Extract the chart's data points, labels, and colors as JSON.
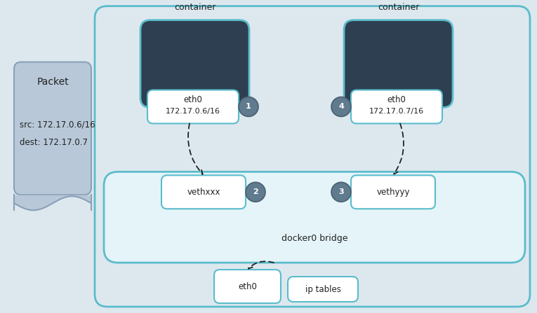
{
  "bg_color": "#dde8ee",
  "outer_bg": "#dde8ee",
  "outer_edge": "#5bbccc",
  "container_color": "#2d3f50",
  "container_edge": "#5bbccc",
  "eth_box_face": "#ffffff",
  "eth_box_edge": "#5bbccc",
  "bridge_face": "#e5f4f8",
  "bridge_edge": "#5bbccc",
  "packet_face": "#b8c8d8",
  "packet_edge": "#8aa0b8",
  "circle_face": "#607a8e",
  "circle_edge": "#4a6070",
  "circle_text": "#ffffff",
  "arrow_color": "#222222",
  "text_color": "#222222",
  "text_color_dark": "#2a3f55",
  "container_label": "container",
  "eth1_line1": "eth0",
  "eth1_line2": "172.17.0.6/16",
  "eth2_line1": "eth0",
  "eth2_line2": "172.17.0.7/16",
  "veth1_label": "vethxxx",
  "veth2_label": "vethyyy",
  "bridge_label": "docker0 bridge",
  "eth0_bottom_label": "eth0",
  "iptables_label": "ip tables",
  "packet_title": "Packet",
  "packet_src": "src: 172.17.0.6/16",
  "packet_dest": "dest: 172.17.0.7",
  "figsize": [
    7.65,
    4.47
  ],
  "dpi": 100
}
